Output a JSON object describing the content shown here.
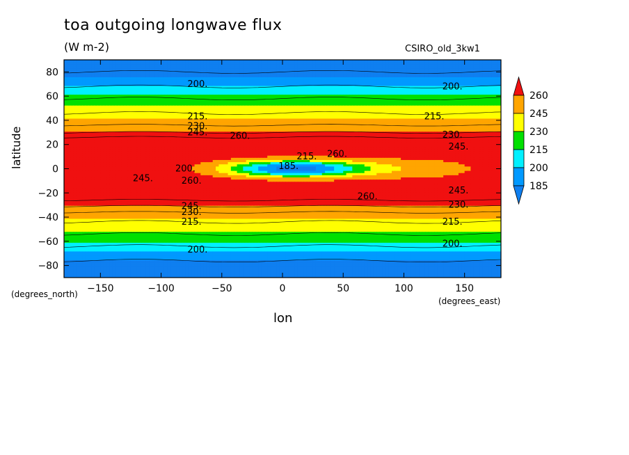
{
  "chart_data": {
    "type": "heatmap",
    "title": "toa outgoing longwave flux",
    "units": "(W m-2)",
    "source": "CSIRO_old_3kw1",
    "xlabel": "lon",
    "ylabel": "latitude",
    "x_unit": "(degrees_east)",
    "y_unit": "(degrees_north)",
    "xlim": [
      -180,
      180
    ],
    "ylim": [
      -90,
      90
    ],
    "xticks": [
      -150,
      -100,
      -50,
      0,
      50,
      100,
      150
    ],
    "yticks": [
      -80,
      -60,
      -40,
      -20,
      0,
      20,
      40,
      60,
      80
    ],
    "colorbar": {
      "levels": [
        185,
        200,
        215,
        230,
        245,
        260
      ],
      "colors": [
        "#0f7ff0",
        "#0099ff",
        "#00f0ff",
        "#00e000",
        "#ffff00",
        "#ffa500",
        "#f01010"
      ],
      "extend": "both"
    },
    "contour_labels": [
      {
        "text": "200.",
        "lon": -70,
        "lat": 70
      },
      {
        "text": "200.",
        "lon": 140,
        "lat": 68
      },
      {
        "text": "215.",
        "lon": -70,
        "lat": 43
      },
      {
        "text": "215.",
        "lon": 125,
        "lat": 43
      },
      {
        "text": "230.",
        "lon": -70,
        "lat": 35
      },
      {
        "text": "230.",
        "lon": 140,
        "lat": 28
      },
      {
        "text": "245.",
        "lon": -70,
        "lat": 30
      },
      {
        "text": "245.",
        "lon": 145,
        "lat": 18
      },
      {
        "text": "260.",
        "lon": -35,
        "lat": 27
      },
      {
        "text": "260.",
        "lon": 45,
        "lat": 12
      },
      {
        "text": "185.",
        "lon": 5,
        "lat": 2
      },
      {
        "text": "215.",
        "lon": 20,
        "lat": 10
      },
      {
        "text": "200.",
        "lon": -80,
        "lat": 0
      },
      {
        "text": "260.",
        "lon": -75,
        "lat": -10
      },
      {
        "text": "245.",
        "lon": -115,
        "lat": -8
      },
      {
        "text": "260.",
        "lon": 70,
        "lat": -23
      },
      {
        "text": "245.",
        "lon": 145,
        "lat": -18
      },
      {
        "text": "230.",
        "lon": 145,
        "lat": -30
      },
      {
        "text": "245.",
        "lon": -75,
        "lat": -31
      },
      {
        "text": "230.",
        "lon": -75,
        "lat": -36
      },
      {
        "text": "215.",
        "lon": -75,
        "lat": -44
      },
      {
        "text": "215.",
        "lon": 140,
        "lat": -44
      },
      {
        "text": "200.",
        "lon": -70,
        "lat": -67
      },
      {
        "text": "200.",
        "lon": 140,
        "lat": -62
      }
    ]
  }
}
